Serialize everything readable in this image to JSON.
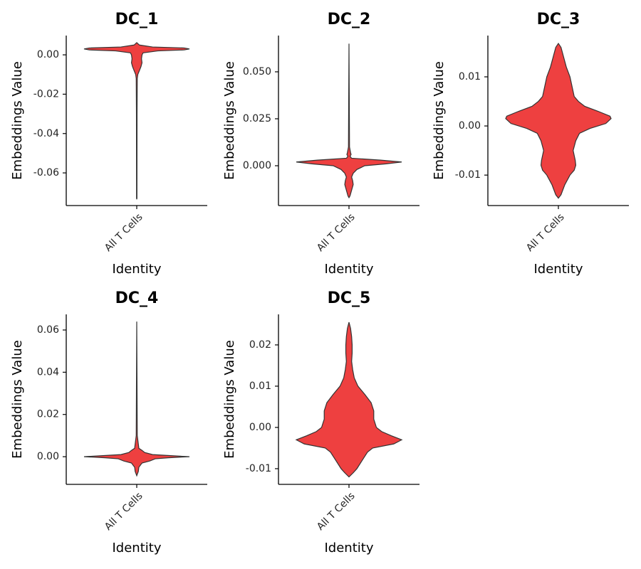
{
  "chart_data": [
    {
      "type": "violin",
      "title": "DC_1",
      "ylabel": "Embeddings Value",
      "xlabel": "Identity",
      "categories": [
        "All T Cells"
      ],
      "color": "#ee4040",
      "ylim": [
        -0.0766,
        0.0098
      ],
      "yticks": [
        {
          "value": 0,
          "label": "0.00"
        },
        {
          "value": -0.02,
          "label": "-0.02"
        },
        {
          "value": -0.04,
          "label": "-0.04"
        },
        {
          "value": -0.06,
          "label": "-0.06"
        }
      ],
      "y": [
        0.0062,
        0.005,
        0.004,
        0.0035,
        0.003,
        0.0025,
        0.002,
        0.001,
        0.0,
        -0.002,
        -0.004,
        -0.006,
        -0.008,
        -0.01,
        -0.012,
        -0.03,
        -0.073,
        -0.0732
      ],
      "density": [
        0,
        0.05,
        0.3,
        0.9,
        1.0,
        0.9,
        0.4,
        0.12,
        0.1,
        0.09,
        0.1,
        0.08,
        0.05,
        0.02,
        0.01,
        0.006,
        0.004,
        0
      ]
    },
    {
      "type": "violin",
      "title": "DC_2",
      "ylabel": "Embeddings Value",
      "xlabel": "Identity",
      "categories": [
        "All T Cells"
      ],
      "color": "#ee4040",
      "ylim": [
        -0.0212,
        0.0693
      ],
      "yticks": [
        {
          "value": 0.05,
          "label": "0.050"
        },
        {
          "value": 0.025,
          "label": "0.025"
        },
        {
          "value": 0,
          "label": "0.000"
        }
      ],
      "y": [
        0.065,
        0.01,
        0.007,
        0.006,
        0.005,
        0.004,
        0.003,
        0.002,
        0.001,
        0.0,
        -0.002,
        -0.004,
        -0.006,
        -0.008,
        -0.01,
        -0.012,
        -0.014,
        -0.016,
        -0.017
      ],
      "density": [
        0,
        0.01,
        0.03,
        0.04,
        0.02,
        0.05,
        0.6,
        1.0,
        0.7,
        0.3,
        0.15,
        0.08,
        0.05,
        0.07,
        0.08,
        0.06,
        0.04,
        0.02,
        0
      ]
    },
    {
      "type": "violin",
      "title": "DC_3",
      "ylabel": "Embeddings Value",
      "xlabel": "Identity",
      "categories": [
        "All T Cells"
      ],
      "color": "#ee4040",
      "ylim": [
        -0.0162,
        0.0184
      ],
      "yticks": [
        {
          "value": 0.01,
          "label": "0.01"
        },
        {
          "value": 0,
          "label": "0.00"
        },
        {
          "value": -0.01,
          "label": "-0.01"
        }
      ],
      "y": [
        0.0168,
        0.016,
        0.014,
        0.012,
        0.01,
        0.008,
        0.006,
        0.005,
        0.004,
        0.003,
        0.002,
        0.0015,
        0.0005,
        -0.0005,
        -0.0015,
        -0.003,
        -0.005,
        -0.006,
        -0.007,
        -0.008,
        -0.009,
        -0.01,
        -0.012,
        -0.014,
        -0.0147
      ],
      "density": [
        0,
        0.05,
        0.1,
        0.15,
        0.22,
        0.26,
        0.3,
        0.38,
        0.5,
        0.75,
        0.98,
        1.0,
        0.9,
        0.6,
        0.4,
        0.33,
        0.28,
        0.3,
        0.32,
        0.33,
        0.3,
        0.22,
        0.12,
        0.05,
        0
      ]
    },
    {
      "type": "violin",
      "title": "DC_4",
      "ylabel": "Embeddings Value",
      "xlabel": "Identity",
      "categories": [
        "All T Cells"
      ],
      "color": "#ee4040",
      "ylim": [
        -0.0131,
        0.0674
      ],
      "yticks": [
        {
          "value": 0.06,
          "label": "0.06"
        },
        {
          "value": 0.04,
          "label": "0.04"
        },
        {
          "value": 0.02,
          "label": "0.02"
        },
        {
          "value": 0,
          "label": "0.00"
        }
      ],
      "y": [
        0.064,
        0.01,
        0.004,
        0.003,
        0.002,
        0.001,
        0.0,
        -0.0005,
        -0.001,
        -0.002,
        -0.003,
        -0.005,
        -0.007,
        -0.009
      ],
      "density": [
        0,
        0.01,
        0.04,
        0.1,
        0.15,
        0.3,
        1.0,
        0.6,
        0.35,
        0.25,
        0.1,
        0.04,
        0.03,
        0
      ]
    },
    {
      "type": "violin",
      "title": "DC_5",
      "ylabel": "Embeddings Value",
      "xlabel": "Identity",
      "categories": [
        "All T Cells"
      ],
      "color": "#ee4040",
      "ylim": [
        -0.0138,
        0.0274
      ],
      "yticks": [
        {
          "value": 0.02,
          "label": "0.02"
        },
        {
          "value": 0.01,
          "label": "0.01"
        },
        {
          "value": 0,
          "label": "0.00"
        },
        {
          "value": -0.01,
          "label": "-0.01"
        }
      ],
      "y": [
        0.0255,
        0.024,
        0.022,
        0.02,
        0.018,
        0.016,
        0.014,
        0.012,
        0.01,
        0.008,
        0.006,
        0.004,
        0.002,
        0.0,
        -0.001,
        -0.002,
        -0.003,
        -0.004,
        -0.005,
        -0.006,
        -0.008,
        -0.01,
        -0.011,
        -0.012
      ],
      "density": [
        0,
        0.03,
        0.05,
        0.06,
        0.06,
        0.05,
        0.07,
        0.1,
        0.17,
        0.3,
        0.42,
        0.47,
        0.47,
        0.52,
        0.62,
        0.8,
        1.0,
        0.85,
        0.45,
        0.35,
        0.25,
        0.15,
        0.08,
        0
      ]
    }
  ]
}
